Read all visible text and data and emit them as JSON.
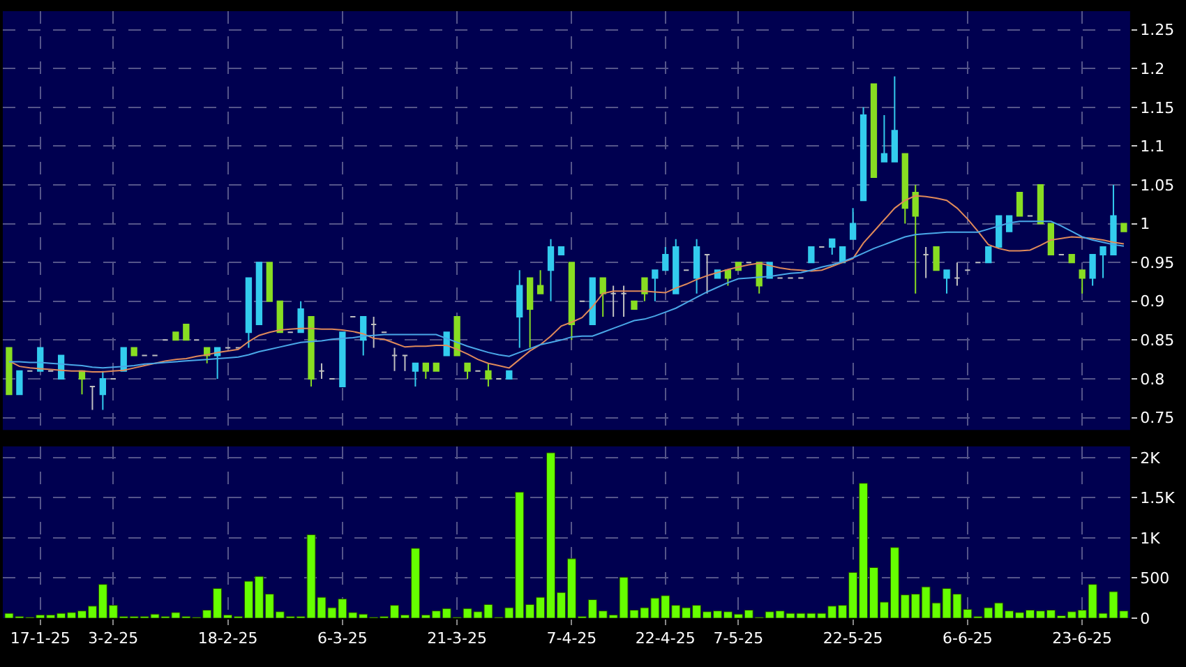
{
  "chart_data": [
    {
      "type": "candlestick",
      "tick_labels": "y",
      "grid": true,
      "ylim": [
        0.734,
        1.274
      ],
      "yticks": [
        0.75,
        0.8,
        0.85,
        0.9,
        0.95,
        1,
        1.05,
        1.1,
        1.15,
        1.2,
        1.25
      ],
      "categories": [
        null,
        null,
        null,
        null,
        null,
        null,
        null,
        null,
        null,
        null,
        null,
        null,
        null,
        null,
        null,
        null,
        null,
        null,
        null,
        null,
        null,
        null,
        null,
        null,
        null,
        null,
        null,
        null,
        null,
        null,
        null,
        null,
        null,
        null,
        null,
        null,
        null,
        null,
        null,
        null,
        null,
        null,
        null,
        null,
        null,
        null,
        null,
        null,
        null,
        null,
        null,
        null,
        null,
        null,
        null,
        null,
        null,
        null,
        null,
        null,
        null,
        null,
        null,
        null,
        null,
        null,
        null,
        null,
        null,
        null,
        null,
        null,
        null,
        null,
        null,
        null,
        null,
        null,
        null,
        null,
        null,
        null,
        null,
        null,
        null,
        null,
        null,
        null,
        null,
        null,
        null,
        null,
        null,
        null,
        null,
        null,
        null,
        null,
        null,
        null,
        null,
        null,
        null,
        null,
        null,
        null,
        null,
        null
      ],
      "ohlc": [
        [
          0.84,
          0.84,
          0.78,
          0.78
        ],
        [
          0.78,
          0.81,
          0.78,
          0.81
        ],
        [
          0.81,
          0.81,
          0.81,
          0.81
        ],
        [
          0.81,
          0.84,
          0.81,
          0.84
        ],
        [
          0.81,
          0.81,
          0.81,
          0.81
        ],
        [
          0.8,
          0.83,
          0.8,
          0.83
        ],
        null,
        [
          0.81,
          0.81,
          0.78,
          0.8
        ],
        [
          0.79,
          0.79,
          0.76,
          0.79
        ],
        [
          0.78,
          0.81,
          0.76,
          0.8
        ],
        [
          0.8,
          0.8,
          0.8,
          0.8
        ],
        [
          0.81,
          0.84,
          0.81,
          0.84
        ],
        [
          0.84,
          0.84,
          0.83,
          0.83
        ],
        [
          0.83,
          0.83,
          0.83,
          0.83
        ],
        [
          0.83,
          0.83,
          0.83,
          0.83
        ],
        [
          0.85,
          0.85,
          0.85,
          0.85
        ],
        [
          0.86,
          0.86,
          0.85,
          0.85
        ],
        [
          0.87,
          0.87,
          0.85,
          0.85
        ],
        [
          0.85,
          0.85,
          0.85,
          0.85
        ],
        [
          0.84,
          0.84,
          0.82,
          0.83
        ],
        [
          0.83,
          0.84,
          0.8,
          0.84
        ],
        [
          0.84,
          0.84,
          0.84,
          0.84
        ],
        [
          0.84,
          0.84,
          0.84,
          0.84
        ],
        [
          0.86,
          0.93,
          0.84,
          0.93
        ],
        [
          0.87,
          0.95,
          0.87,
          0.95
        ],
        [
          0.95,
          0.95,
          0.9,
          0.9
        ],
        [
          0.9,
          0.9,
          0.86,
          0.86
        ],
        [
          0.86,
          0.86,
          0.86,
          0.86
        ],
        [
          0.86,
          0.9,
          0.86,
          0.89
        ],
        [
          0.88,
          0.88,
          0.79,
          0.8
        ],
        [
          0.81,
          0.82,
          0.8,
          0.81
        ],
        [
          0.8,
          0.8,
          0.8,
          0.8
        ],
        [
          0.79,
          0.86,
          0.79,
          0.86
        ],
        [
          0.88,
          0.88,
          0.88,
          0.88
        ],
        [
          0.85,
          0.88,
          0.83,
          0.88
        ],
        [
          0.87,
          0.88,
          0.84,
          0.87
        ],
        [
          0.86,
          0.86,
          0.86,
          0.86
        ],
        [
          0.83,
          0.84,
          0.81,
          0.83
        ],
        [
          0.83,
          0.83,
          0.81,
          0.83
        ],
        [
          0.81,
          0.82,
          0.79,
          0.82
        ],
        [
          0.82,
          0.82,
          0.8,
          0.81
        ],
        [
          0.82,
          0.82,
          0.81,
          0.81
        ],
        [
          0.83,
          0.86,
          0.83,
          0.86
        ],
        [
          0.88,
          0.88,
          0.83,
          0.83
        ],
        [
          0.82,
          0.82,
          0.8,
          0.81
        ],
        [
          0.81,
          0.81,
          0.81,
          0.81
        ],
        [
          0.81,
          0.82,
          0.79,
          0.8
        ],
        [
          0.8,
          0.8,
          0.8,
          0.8
        ],
        [
          0.8,
          0.81,
          0.8,
          0.81
        ],
        [
          0.88,
          0.94,
          0.84,
          0.92
        ],
        [
          0.93,
          0.93,
          0.84,
          0.89
        ],
        [
          0.92,
          0.94,
          0.91,
          0.91
        ],
        [
          0.94,
          0.98,
          0.9,
          0.97
        ],
        [
          0.96,
          0.97,
          0.96,
          0.97
        ],
        [
          0.95,
          0.95,
          0.85,
          0.87
        ],
        [
          0.9,
          0.9,
          0.9,
          0.9
        ],
        [
          0.87,
          0.93,
          0.87,
          0.93
        ],
        [
          0.93,
          0.93,
          0.88,
          0.91
        ],
        [
          0.91,
          0.92,
          0.88,
          0.91
        ],
        [
          0.91,
          0.92,
          0.88,
          0.91
        ],
        [
          0.9,
          0.9,
          0.89,
          0.89
        ],
        [
          0.93,
          0.93,
          0.9,
          0.91
        ],
        [
          0.93,
          0.94,
          0.9,
          0.94
        ],
        [
          0.94,
          0.97,
          0.94,
          0.96
        ],
        [
          0.91,
          0.98,
          0.91,
          0.97
        ],
        [
          0.94,
          0.94,
          0.94,
          0.94
        ],
        [
          0.93,
          0.98,
          0.91,
          0.97
        ],
        [
          0.96,
          0.96,
          0.91,
          0.96
        ],
        [
          0.93,
          0.94,
          0.93,
          0.94
        ],
        [
          0.94,
          0.94,
          0.92,
          0.93
        ],
        [
          0.95,
          0.95,
          0.94,
          0.94
        ],
        [
          0.95,
          0.95,
          0.95,
          0.95
        ],
        [
          0.95,
          0.95,
          0.91,
          0.92
        ],
        [
          0.93,
          0.95,
          0.93,
          0.95
        ],
        [
          0.93,
          0.93,
          0.93,
          0.93
        ],
        [
          0.93,
          0.93,
          0.93,
          0.93
        ],
        [
          0.93,
          0.93,
          0.93,
          0.93
        ],
        [
          0.95,
          0.97,
          0.95,
          0.97
        ],
        [
          0.97,
          0.97,
          0.97,
          0.97
        ],
        [
          0.97,
          0.98,
          0.96,
          0.98
        ],
        [
          0.95,
          0.97,
          0.95,
          0.97
        ],
        [
          0.98,
          1.02,
          0.98,
          1.0
        ],
        [
          1.03,
          1.15,
          1.03,
          1.14
        ],
        [
          1.18,
          1.18,
          1.06,
          1.06
        ],
        [
          1.08,
          1.14,
          1.08,
          1.09
        ],
        [
          1.08,
          1.19,
          1.08,
          1.12
        ],
        [
          1.09,
          1.09,
          1.0,
          1.02
        ],
        [
          1.04,
          1.05,
          0.91,
          1.01
        ],
        [
          0.96,
          0.97,
          0.93,
          0.96
        ],
        [
          0.97,
          0.97,
          0.94,
          0.94
        ],
        [
          0.93,
          0.94,
          0.91,
          0.94
        ],
        [
          0.93,
          0.95,
          0.92,
          0.93
        ],
        [
          0.94,
          0.94,
          0.94,
          0.94
        ],
        [
          0.95,
          0.95,
          0.95,
          0.95
        ],
        [
          0.95,
          0.97,
          0.95,
          0.97
        ],
        [
          0.97,
          1.01,
          0.97,
          1.01
        ],
        [
          0.99,
          1.01,
          0.99,
          1.01
        ],
        [
          1.04,
          1.04,
          1.01,
          1.01
        ],
        [
          1.01,
          1.01,
          1.01,
          1.01
        ],
        [
          1.05,
          1.05,
          1.0,
          1.0
        ],
        [
          1.0,
          1.0,
          0.96,
          0.96
        ],
        [
          0.96,
          0.96,
          0.96,
          0.96
        ],
        [
          0.96,
          0.96,
          0.95,
          0.95
        ],
        [
          0.94,
          0.94,
          0.91,
          0.93
        ],
        [
          0.93,
          0.96,
          0.92,
          0.96
        ],
        [
          0.96,
          0.97,
          0.93,
          0.97
        ],
        [
          0.96,
          1.05,
          0.96,
          1.01
        ],
        [
          1.0,
          1.0,
          0.99,
          0.99
        ]
      ],
      "colors": [
        "#88dd22",
        "#33ccee",
        "#c0c0c0",
        "#33ccee",
        "#c0c0c0",
        "#33ccee",
        "#c0c0c0",
        "#88dd22",
        "#c0c0c0",
        "#33ccee",
        "#c0c0c0",
        "#33ccee",
        "#88dd22",
        "#c0c0c0",
        "#c0c0c0",
        "#c0c0c0",
        "#88dd22",
        "#88dd22",
        "#c0c0c0",
        "#88dd22",
        "#33ccee",
        "#c0c0c0",
        "#c0c0c0",
        "#33ccee",
        "#33ccee",
        "#88dd22",
        "#88dd22",
        "#c0c0c0",
        "#33ccee",
        "#88dd22",
        "#c0c0c0",
        "#c0c0c0",
        "#33ccee",
        "#c0c0c0",
        "#33ccee",
        "#c0c0c0",
        "#c0c0c0",
        "#c0c0c0",
        "#c0c0c0",
        "#33ccee",
        "#88dd22",
        "#88dd22",
        "#33ccee",
        "#88dd22",
        "#88dd22",
        "#c0c0c0",
        "#88dd22",
        "#c0c0c0",
        "#33ccee",
        "#33ccee",
        "#88dd22",
        "#88dd22",
        "#33ccee",
        "#33ccee",
        "#88dd22",
        "#c0c0c0",
        "#33ccee",
        "#88dd22",
        "#c0c0c0",
        "#c0c0c0",
        "#88dd22",
        "#88dd22",
        "#33ccee",
        "#33ccee",
        "#33ccee",
        "#c0c0c0",
        "#33ccee",
        "#c0c0c0",
        "#33ccee",
        "#88dd22",
        "#88dd22",
        "#c0c0c0",
        "#88dd22",
        "#33ccee",
        "#c0c0c0",
        "#c0c0c0",
        "#c0c0c0",
        "#33ccee",
        "#c0c0c0",
        "#33ccee",
        "#33ccee",
        "#33ccee",
        "#33ccee",
        "#88dd22",
        "#33ccee",
        "#33ccee",
        "#88dd22",
        "#88dd22",
        "#c0c0c0",
        "#88dd22",
        "#33ccee",
        "#c0c0c0",
        "#c0c0c0",
        "#c0c0c0",
        "#33ccee",
        "#33ccee",
        "#33ccee",
        "#88dd22",
        "#c0c0c0",
        "#88dd22",
        "#88dd22",
        "#c0c0c0",
        "#88dd22",
        "#88dd22",
        "#33ccee",
        "#33ccee",
        "#33ccee",
        "#88dd22"
      ],
      "series": [
        {
          "type": "line",
          "color": "#e08a5a",
          "values": [
            0.823,
            0.816,
            0.814,
            0.813,
            0.812,
            0.811,
            0.81,
            0.81,
            0.809,
            0.809,
            0.81,
            0.811,
            0.814,
            0.817,
            0.82,
            0.823,
            0.825,
            0.826,
            0.829,
            0.831,
            0.834,
            0.836,
            0.838,
            0.848,
            0.856,
            0.86,
            0.863,
            0.864,
            0.865,
            0.865,
            0.864,
            0.864,
            0.863,
            0.861,
            0.858,
            0.852,
            0.851,
            0.846,
            0.841,
            0.842,
            0.842,
            0.843,
            0.843,
            0.838,
            0.832,
            0.825,
            0.82,
            0.817,
            0.814,
            0.825,
            0.836,
            0.844,
            0.855,
            0.868,
            0.873,
            0.879,
            0.893,
            0.91,
            0.913,
            0.913,
            0.913,
            0.913,
            0.912,
            0.911,
            0.917,
            0.922,
            0.928,
            0.933,
            0.937,
            0.941,
            0.944,
            0.947,
            0.949,
            0.946,
            0.943,
            0.941,
            0.94,
            0.939,
            0.94,
            0.945,
            0.95,
            0.955,
            0.975,
            0.99,
            1.005,
            1.02,
            1.03,
            1.036,
            1.035,
            1.033,
            1.03,
            1.02,
            1.006,
            0.99,
            0.973,
            0.968,
            0.965,
            0.965,
            0.966,
            0.972,
            0.979,
            0.981,
            0.983,
            0.982,
            0.981,
            0.979,
            0.976,
            0.974
          ]
        },
        {
          "type": "line",
          "color": "#4aa8e8",
          "values": [
            0.822,
            0.822,
            0.821,
            0.821,
            0.82,
            0.819,
            0.818,
            0.817,
            0.815,
            0.814,
            0.815,
            0.816,
            0.817,
            0.819,
            0.82,
            0.821,
            0.822,
            0.823,
            0.824,
            0.825,
            0.826,
            0.827,
            0.828,
            0.831,
            0.835,
            0.838,
            0.841,
            0.844,
            0.847,
            0.848,
            0.849,
            0.851,
            0.852,
            0.853,
            0.855,
            0.856,
            0.857,
            0.857,
            0.857,
            0.857,
            0.857,
            0.857,
            0.852,
            0.847,
            0.842,
            0.838,
            0.834,
            0.831,
            0.829,
            0.834,
            0.839,
            0.844,
            0.847,
            0.85,
            0.854,
            0.855,
            0.855,
            0.86,
            0.865,
            0.87,
            0.875,
            0.877,
            0.881,
            0.886,
            0.891,
            0.898,
            0.905,
            0.912,
            0.918,
            0.924,
            0.929,
            0.93,
            0.931,
            0.932,
            0.934,
            0.936,
            0.937,
            0.94,
            0.944,
            0.947,
            0.951,
            0.956,
            0.962,
            0.968,
            0.973,
            0.978,
            0.983,
            0.986,
            0.987,
            0.988,
            0.989,
            0.989,
            0.989,
            0.989,
            0.993,
            0.997,
            1.001,
            1.003,
            1.003,
            1.003,
            1.003,
            0.997,
            0.99,
            0.983,
            0.979,
            0.976,
            0.973,
            0.971
          ]
        }
      ]
    },
    {
      "type": "bar",
      "grid": true,
      "color": "#66ff00",
      "ylim": [
        0,
        2140
      ],
      "yticks": [
        0,
        500,
        {
          "value": 1000,
          "label": "1K"
        },
        {
          "value": 1500,
          "label": "1.5K"
        },
        {
          "value": 2000,
          "label": "2K"
        }
      ],
      "categories": [
        null,
        null,
        null,
        "17-1-25",
        null,
        null,
        null,
        null,
        null,
        null,
        "3-2-25",
        null,
        null,
        null,
        null,
        null,
        null,
        null,
        null,
        null,
        null,
        "18-2-25",
        null,
        null,
        null,
        null,
        null,
        null,
        null,
        null,
        null,
        null,
        "6-3-25",
        null,
        null,
        null,
        null,
        null,
        null,
        null,
        null,
        null,
        null,
        "21-3-25",
        null,
        null,
        null,
        null,
        null,
        null,
        null,
        null,
        null,
        null,
        "7-4-25",
        null,
        null,
        null,
        null,
        null,
        null,
        null,
        null,
        "22-4-25",
        null,
        null,
        null,
        null,
        null,
        null,
        "7-5-25",
        null,
        null,
        null,
        null,
        null,
        null,
        null,
        null,
        null,
        null,
        "22-5-25",
        null,
        null,
        null,
        null,
        null,
        null,
        null,
        null,
        null,
        null,
        "6-6-25",
        null,
        null,
        null,
        null,
        null,
        null,
        null,
        null,
        null,
        null,
        "23-6-25",
        null,
        null,
        null,
        null
      ],
      "values": [
        60,
        20,
        10,
        40,
        40,
        60,
        70,
        90,
        150,
        420,
        160,
        20,
        20,
        20,
        50,
        20,
        70,
        20,
        10,
        100,
        370,
        40,
        20,
        460,
        520,
        300,
        80,
        20,
        20,
        1040,
        260,
        130,
        240,
        70,
        50,
        10,
        20,
        160,
        40,
        870,
        40,
        90,
        120,
        10,
        120,
        80,
        170,
        10,
        130,
        1570,
        170,
        260,
        2060,
        320,
        740,
        20,
        230,
        90,
        40,
        510,
        100,
        130,
        250,
        280,
        160,
        130,
        160,
        80,
        90,
        80,
        50,
        100,
        10,
        80,
        90,
        60,
        60,
        60,
        60,
        150,
        160,
        570,
        1680,
        630,
        200,
        880,
        290,
        300,
        390,
        190,
        370,
        300,
        110,
        20,
        130,
        190,
        90,
        70,
        100,
        90,
        100,
        30,
        80,
        100,
        420,
        60,
        330,
        90
      ]
    }
  ]
}
